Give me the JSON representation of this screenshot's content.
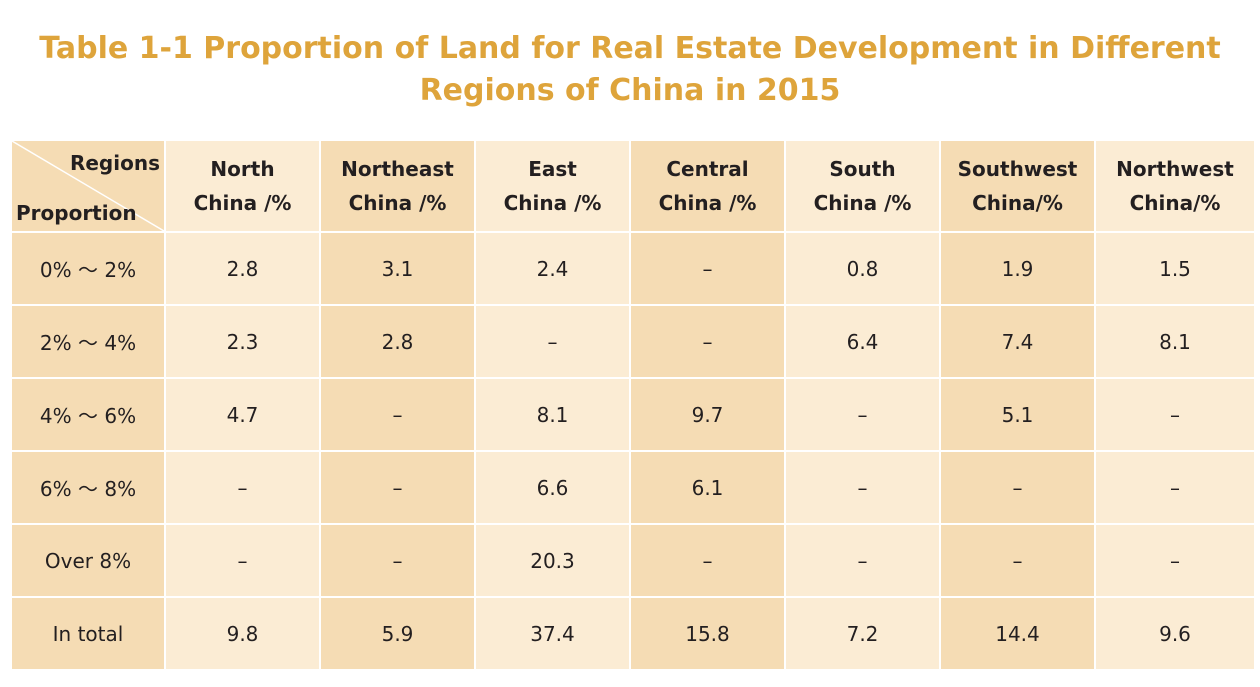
{
  "title": {
    "line1": "Table 1-1 Proportion of Land for Real Estate Development in Different",
    "line2": "Regions of China in 2015"
  },
  "table": {
    "corner_top": "Regions",
    "corner_bottom": "Proportion",
    "headers": [
      [
        "North",
        "China /%"
      ],
      [
        "Northeast",
        "China /%"
      ],
      [
        "East",
        "China /%"
      ],
      [
        "Central",
        "China /%"
      ],
      [
        "South",
        "China /%"
      ],
      [
        "Southwest",
        "China/%"
      ],
      [
        "Northwest",
        "China/%"
      ]
    ],
    "rows": [
      {
        "label": "0% ～ 2%",
        "cells": [
          "2.8",
          "3.1",
          "2.4",
          "–",
          "0.8",
          "1.9",
          "1.5"
        ]
      },
      {
        "label": "2% ～ 4%",
        "cells": [
          "2.3",
          "2.8",
          "–",
          "–",
          "6.4",
          "7.4",
          "8.1"
        ]
      },
      {
        "label": "4% ～ 6%",
        "cells": [
          "4.7",
          "–",
          "8.1",
          "9.7",
          "–",
          "5.1",
          "–"
        ]
      },
      {
        "label": "6% ～ 8%",
        "cells": [
          "–",
          "–",
          "6.6",
          "6.1",
          "–",
          "–",
          "–"
        ]
      },
      {
        "label": "Over 8%",
        "cells": [
          "–",
          "–",
          "20.3",
          "–",
          "–",
          "–",
          "–"
        ]
      },
      {
        "label": "In total",
        "cells": [
          "9.8",
          "5.9",
          "37.4",
          "15.8",
          "7.2",
          "14.4",
          "9.6"
        ]
      }
    ]
  },
  "colors": {
    "title": "#dea43b",
    "cell_light": "#fbecd4",
    "cell_dark": "#f5dcb4",
    "text": "#231f20"
  }
}
